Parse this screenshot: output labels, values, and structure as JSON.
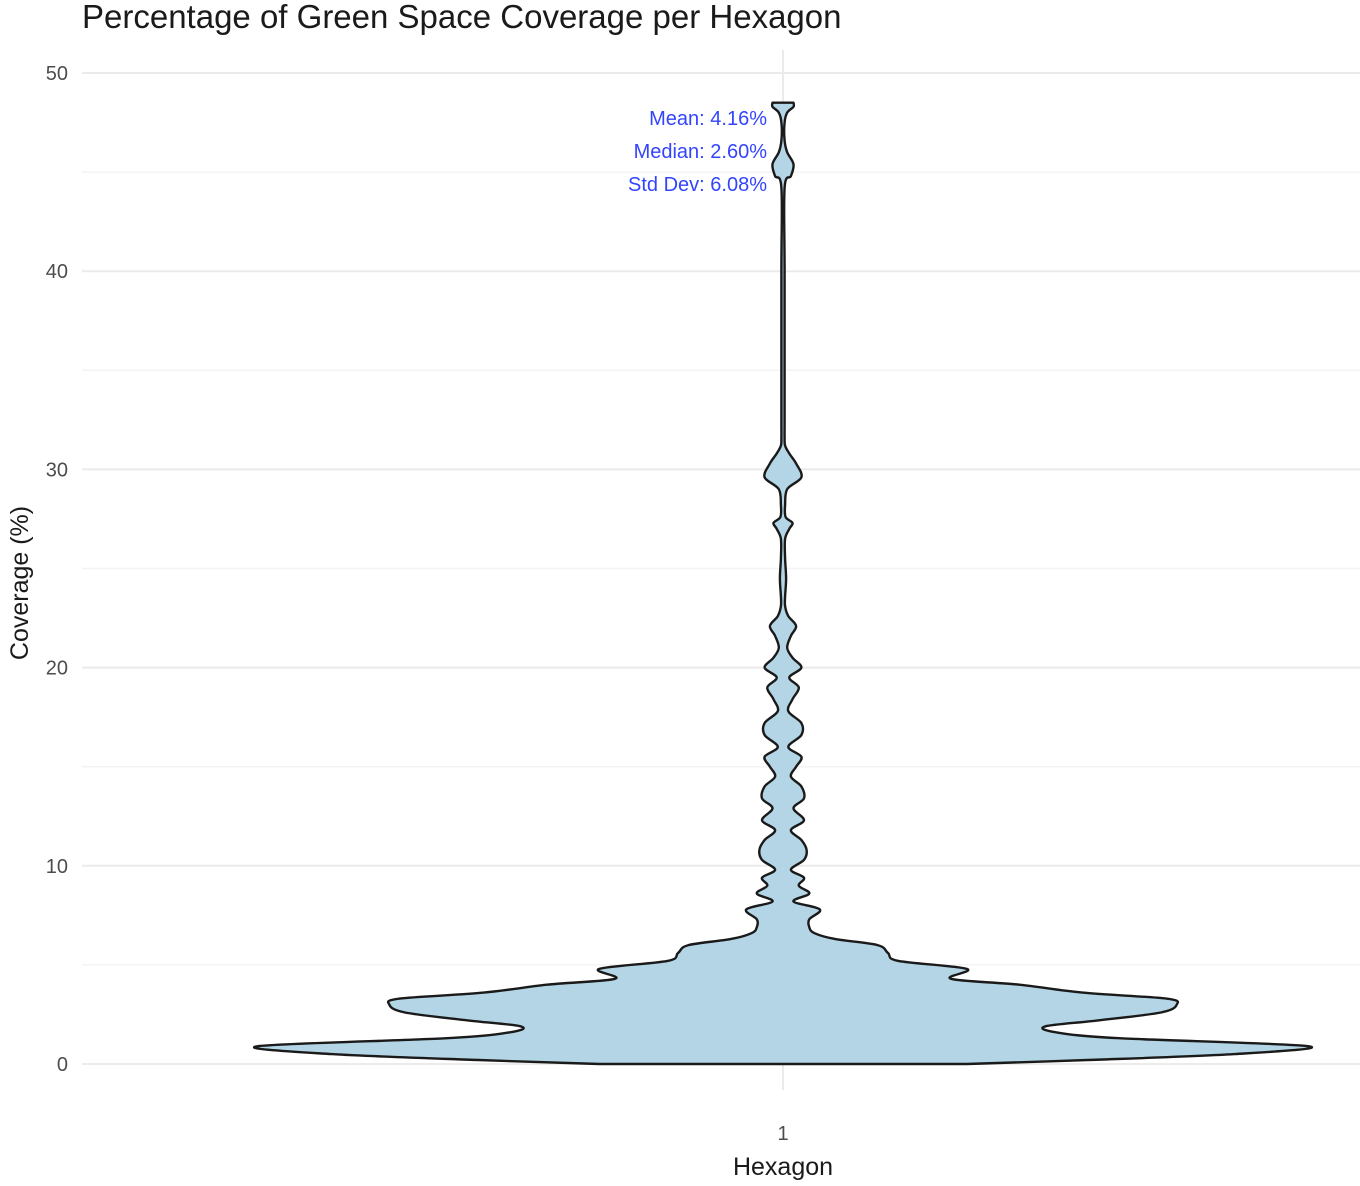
{
  "chart_data": {
    "type": "violin",
    "title": "Percentage of Green Space Coverage per Hexagon",
    "xlabel": "Hexagon",
    "ylabel": "Coverage (%)",
    "categories": [
      "1"
    ],
    "ylim": [
      0,
      50
    ],
    "yticks": [
      0,
      10,
      20,
      30,
      40,
      50
    ],
    "grid": true,
    "fill_color": "#b3d5e5",
    "outline_color": "#1a1a1a",
    "annotation_color": "#3344ff",
    "annotations": [
      "Mean: 4.16%",
      "Median: 2.60%",
      "Std Dev: 6.08%"
    ],
    "stats": {
      "mean": 4.16,
      "median": 2.6,
      "std_dev": 6.08
    },
    "density": {
      "note_units": "y in Coverage (%), width as fraction of maximum violin half-width",
      "y": [
        0,
        0.2,
        0.5,
        0.9,
        1.3,
        1.6,
        1.9,
        2.2,
        2.6,
        3.0,
        3.3,
        3.6,
        4.0,
        4.3,
        4.8,
        5.2,
        5.6,
        6.0,
        6.3,
        6.6,
        6.9,
        7.3,
        7.8,
        8.2,
        8.6,
        9.0,
        9.4,
        9.8,
        10.3,
        10.8,
        11.3,
        11.8,
        12.3,
        12.9,
        13.4,
        14.0,
        14.5,
        15.0,
        15.5,
        16.0,
        16.6,
        17.2,
        17.8,
        18.4,
        19.0,
        19.5,
        20.0,
        20.5,
        21.0,
        21.6,
        22.1,
        22.6,
        23.1,
        23.6,
        24.5,
        25.5,
        26.5,
        27.0,
        27.3,
        27.6,
        28.2,
        29.0,
        29.6,
        30.3,
        30.8,
        31.2,
        31.6,
        32.2,
        33.0,
        40.0,
        44.2,
        44.8,
        45.4,
        46.0,
        46.6,
        47.5,
        48.0,
        48.3,
        48.5
      ],
      "width": [
        0.35,
        0.58,
        0.86,
        1.0,
        0.64,
        0.52,
        0.5,
        0.6,
        0.72,
        0.75,
        0.73,
        0.57,
        0.45,
        0.32,
        0.35,
        0.22,
        0.2,
        0.18,
        0.1,
        0.06,
        0.05,
        0.05,
        0.07,
        0.02,
        0.05,
        0.03,
        0.04,
        0.015,
        0.04,
        0.045,
        0.035,
        0.015,
        0.04,
        0.02,
        0.04,
        0.035,
        0.015,
        0.025,
        0.035,
        0.01,
        0.035,
        0.035,
        0.01,
        0.018,
        0.03,
        0.012,
        0.035,
        0.018,
        0.008,
        0.015,
        0.025,
        0.01,
        0.004,
        0.004,
        0.006,
        0.004,
        0.004,
        0.012,
        0.018,
        0.005,
        0.004,
        0.008,
        0.035,
        0.025,
        0.012,
        0.004,
        0.003,
        0.003,
        0.003,
        0.003,
        0.003,
        0.015,
        0.02,
        0.008,
        0.003,
        0.003,
        0.008,
        0.02,
        0.02
      ]
    }
  }
}
